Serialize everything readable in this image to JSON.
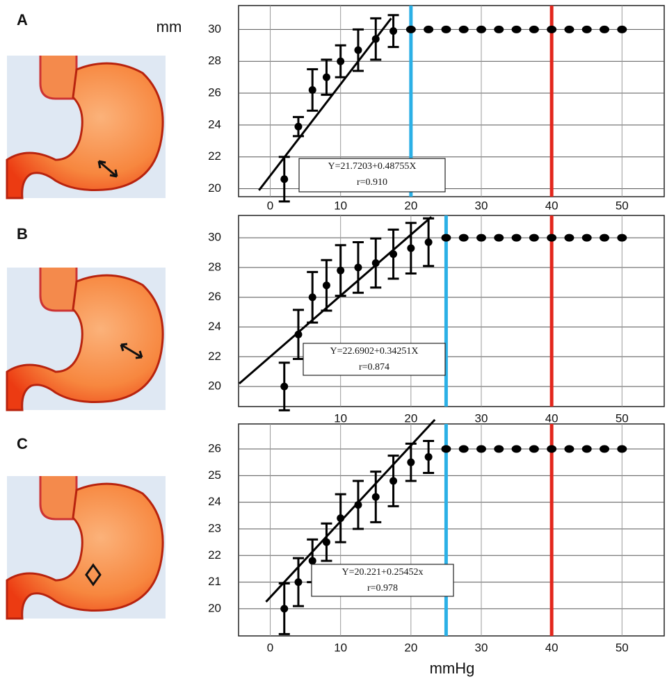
{
  "chart_data": [
    {
      "type": "scatter",
      "label": "A",
      "ylabel": "mm",
      "x": [
        2,
        4,
        6,
        8,
        10,
        12.5,
        15,
        17.5
      ],
      "values": [
        20.6,
        23.9,
        26.2,
        27.0,
        28.0,
        28.7,
        29.4,
        29.9
      ],
      "errors": [
        1.4,
        0.6,
        1.3,
        1.1,
        1.0,
        1.3,
        1.3,
        1.0
      ],
      "plateau": {
        "x": [
          20,
          22.5,
          25,
          27.5,
          30,
          32.5,
          35,
          37.5,
          40,
          42.5,
          45,
          47.5,
          50
        ],
        "values": [
          30,
          30,
          30,
          30,
          30,
          30,
          30,
          30,
          30,
          30,
          30,
          30,
          30
        ]
      },
      "fit": {
        "x": [
          -1.6,
          17.2
        ],
        "values": [
          19.9,
          30.7
        ]
      },
      "annotation": [
        "Y=21.7203+0.48755X",
        "r=0.910"
      ],
      "vlines": [
        {
          "value": 20,
          "color": "#2bb0e6"
        },
        {
          "value": 40,
          "color": "#e3261c"
        }
      ],
      "xlim": [
        -4.5,
        56
      ],
      "ylim": [
        19.5,
        31.5
      ],
      "xticks": [
        0,
        10,
        20,
        30,
        40,
        50
      ],
      "yticks": [
        20,
        22,
        24,
        26,
        28,
        30
      ],
      "grid": true,
      "color": "#000000"
    },
    {
      "type": "scatter",
      "label": "B",
      "x": [
        2,
        4,
        6,
        8,
        10,
        12.5,
        15,
        17.5,
        20,
        22.5
      ],
      "values": [
        20.0,
        23.5,
        26.0,
        26.8,
        27.8,
        28.0,
        28.3,
        28.9,
        29.3,
        29.7
      ],
      "errors": [
        1.6,
        1.65,
        1.7,
        1.7,
        1.7,
        1.7,
        1.65,
        1.65,
        1.7,
        1.6
      ],
      "plateau": {
        "x": [
          25,
          27.5,
          30,
          32.5,
          35,
          37.5,
          40,
          42.5,
          45,
          47.5,
          50
        ],
        "values": [
          30,
          30,
          30,
          30,
          30,
          30,
          30,
          30,
          30,
          30,
          30
        ]
      },
      "fit": {
        "x": [
          -4.4,
          22.9
        ],
        "values": [
          20.2,
          31.4
        ]
      },
      "annotation": [
        "Y=22.6902+0.34251X",
        "r=0.874"
      ],
      "vlines": [
        {
          "value": 25,
          "color": "#2bb0e6"
        },
        {
          "value": 40,
          "color": "#e3261c"
        }
      ],
      "xlim": [
        -4.5,
        56
      ],
      "ylim": [
        18.65,
        31.5
      ],
      "xticks": [
        10,
        20,
        30,
        40,
        50
      ],
      "yticks": [
        20,
        22,
        24,
        26,
        28,
        30
      ],
      "grid": true,
      "color": "#000000"
    },
    {
      "type": "scatter",
      "label": "C",
      "xlabel": "mmHg",
      "x": [
        2,
        4,
        6,
        8,
        10,
        12.5,
        15,
        17.5,
        20,
        22.5
      ],
      "values": [
        20.0,
        21.0,
        21.8,
        22.5,
        23.4,
        23.9,
        24.2,
        24.8,
        25.5,
        25.7
      ],
      "errors": [
        0.95,
        0.9,
        0.8,
        0.7,
        0.9,
        0.9,
        0.95,
        0.95,
        0.7,
        0.6
      ],
      "plateau": {
        "x": [
          25,
          27.5,
          30,
          32.5,
          35,
          37.5,
          40,
          42.5,
          45,
          47.5,
          50
        ],
        "values": [
          26,
          26,
          26,
          26,
          26,
          26,
          26,
          26,
          26,
          26,
          26
        ]
      },
      "fit": {
        "x": [
          -0.6,
          23.4
        ],
        "values": [
          20.26,
          27.1
        ]
      },
      "annotation": [
        "Y=20.221+0.25452x",
        "r=0.978"
      ],
      "vlines": [
        {
          "value": 25,
          "color": "#2bb0e6"
        },
        {
          "value": 40,
          "color": "#e3261c"
        }
      ],
      "xlim": [
        -4.5,
        56
      ],
      "ylim": [
        18.98,
        26.94
      ],
      "xticks": [
        0,
        10,
        20,
        30,
        40,
        50
      ],
      "yticks": [
        20,
        21,
        22,
        23,
        24,
        25,
        26
      ],
      "grid": true,
      "color": "#000000"
    }
  ]
}
